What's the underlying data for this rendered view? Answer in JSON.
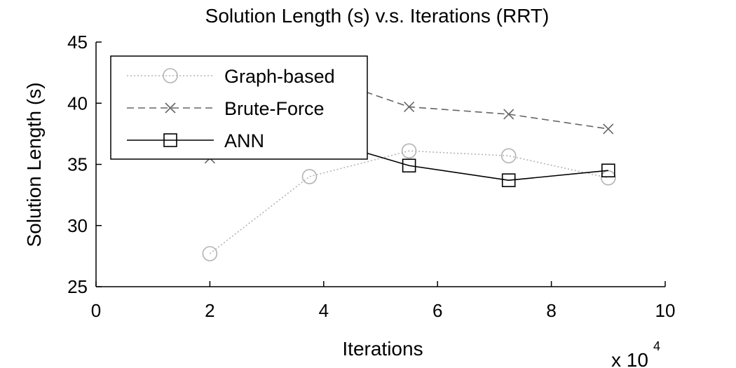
{
  "chart_data": {
    "type": "line",
    "title": "Solution Length (s) v.s. Iterations (RRT)",
    "xlabel": "Iterations",
    "ylabel": "Solution Length (s)",
    "x_multiplier_label": "x 10",
    "x_multiplier_exponent": "4",
    "xlim": [
      0,
      10
    ],
    "ylim": [
      25,
      45
    ],
    "xticks": [
      0,
      2,
      4,
      6,
      8,
      10
    ],
    "yticks": [
      25,
      30,
      35,
      40,
      45
    ],
    "xtick_labels": [
      "0",
      "2",
      "4",
      "6",
      "8",
      "10"
    ],
    "ytick_labels": [
      "25",
      "30",
      "35",
      "40",
      "45"
    ],
    "grid": false,
    "legend_position": "top-left",
    "series": [
      {
        "name": "Graph-based",
        "marker": "circle",
        "line_style": "dotted",
        "color": "#b3b3b3",
        "x": [
          2,
          3.75,
          5.5,
          7.25,
          9
        ],
        "y": [
          27.7,
          34.0,
          36.1,
          35.7,
          33.9
        ]
      },
      {
        "name": "Brute-Force",
        "marker": "x",
        "line_style": "dashed",
        "color": "#666666",
        "x": [
          2,
          3.75,
          5.5,
          7.25,
          9
        ],
        "y": [
          35.5,
          42.5,
          39.7,
          39.1,
          37.9
        ]
      },
      {
        "name": "ANN",
        "marker": "square",
        "line_style": "solid",
        "color": "#000000",
        "x": [
          2,
          3.75,
          5.5,
          7.25,
          9
        ],
        "y": [
          40.0,
          37.3,
          34.9,
          33.7,
          34.5
        ]
      }
    ]
  }
}
